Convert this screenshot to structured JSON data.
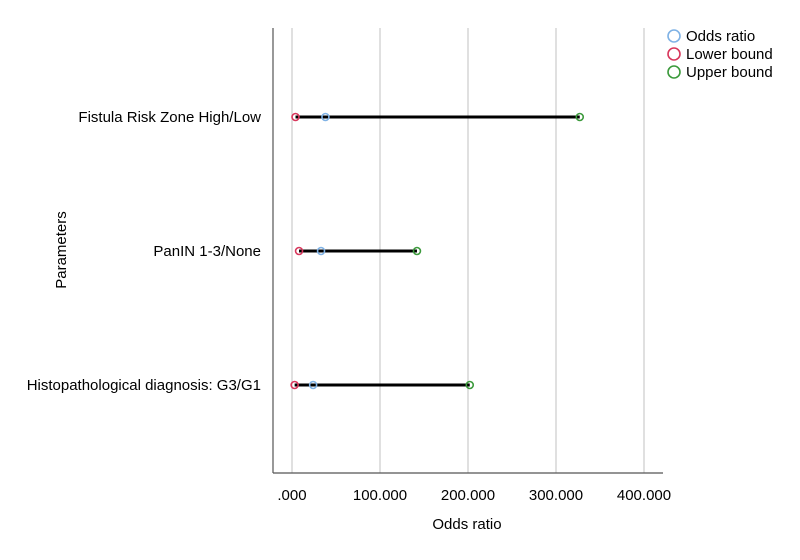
{
  "chart_data": {
    "type": "scatter",
    "xlabel": "Odds ratio",
    "ylabel": "Parameters",
    "xlim": [
      -20,
      410
    ],
    "x_ticks": [
      {
        "value": 0,
        "label": ".000"
      },
      {
        "value": 100,
        "label": "100.000"
      },
      {
        "value": 200,
        "label": "200.000"
      },
      {
        "value": 300,
        "label": "300.000"
      },
      {
        "value": 400,
        "label": "400.000"
      }
    ],
    "categories": [
      "Fistula Risk Zone High/Low",
      "PanIN 1-3/None",
      "Histopathological diagnosis: G3/G1"
    ],
    "series": [
      {
        "name": "Odds ratio",
        "values": [
          38,
          33,
          24
        ],
        "color": "#7fb2e5"
      },
      {
        "name": "Lower bound",
        "values": [
          4,
          8,
          3
        ],
        "color": "#d8375c"
      },
      {
        "name": "Upper bound",
        "values": [
          327,
          142,
          202
        ],
        "color": "#3c9a3c"
      }
    ],
    "grid": true,
    "legend": "top-right"
  }
}
